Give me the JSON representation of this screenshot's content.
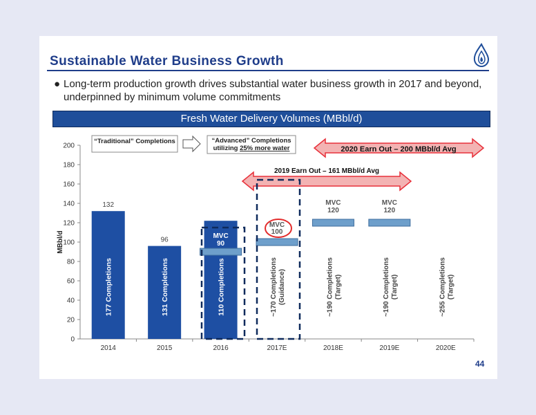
{
  "slide": {
    "title": "Sustainable Water Business Growth",
    "bullet": "Long-term production growth drives substantial water business growth in 2017 and beyond, underpinned by minimum volume commitments",
    "banner": "Fresh Water Delivery Volumes (MBbl/d)",
    "page_number": "44"
  },
  "colors": {
    "brand_blue": "#1f4e9a",
    "bar_fill": "#1e4fa3",
    "mvc_fill": "#6e9fcb",
    "arrow_red": "#e8303a",
    "dashed_navy": "#0e2a5c",
    "circle_red": "#e32b2b"
  },
  "chart_data": {
    "type": "bar",
    "categories": [
      "2014",
      "2015",
      "2016",
      "2017E",
      "2018E",
      "2019E",
      "2020E"
    ],
    "values": [
      132,
      96,
      122,
      null,
      null,
      null,
      null
    ],
    "value_labels": [
      "132",
      "96",
      "",
      "",
      "",
      "",
      ""
    ],
    "bar_labels": [
      "177 Completions",
      "131 Completions",
      "110 Completions",
      "~170 Completions (Guidance)",
      "~190 Completions (Target)",
      "~190 Completions (Target)",
      "~255 Completions (Target)"
    ],
    "ylabel": "MBbl/d",
    "ylim": [
      0,
      200
    ],
    "yticks": [
      0,
      20,
      40,
      60,
      80,
      100,
      120,
      140,
      160,
      180,
      200
    ],
    "grid": false,
    "mvc_markers": [
      {
        "category": "2016",
        "value": 90,
        "label_line1": "MVC",
        "label_line2": "90"
      },
      {
        "category": "2017E",
        "value": 100,
        "label_line1": "MVC",
        "label_line2": "100",
        "circled": true
      },
      {
        "category": "2018E",
        "value": 120,
        "label_line1": "MVC",
        "label_line2": "120"
      },
      {
        "category": "2019E",
        "value": 120,
        "label_line1": "MVC",
        "label_line2": "120"
      }
    ],
    "annotations": {
      "traditional_box": "“Traditional” Completions",
      "advanced_box_line1": "“Advanced” Completions",
      "advanced_box_prefix": "utilizing ",
      "advanced_box_underlined": "25% more water",
      "earnout_2020": "2020 Earn Out – 200 MBbl/d Avg",
      "earnout_2019": "2019 Earn Out – 161 MBbl/d Avg"
    }
  }
}
